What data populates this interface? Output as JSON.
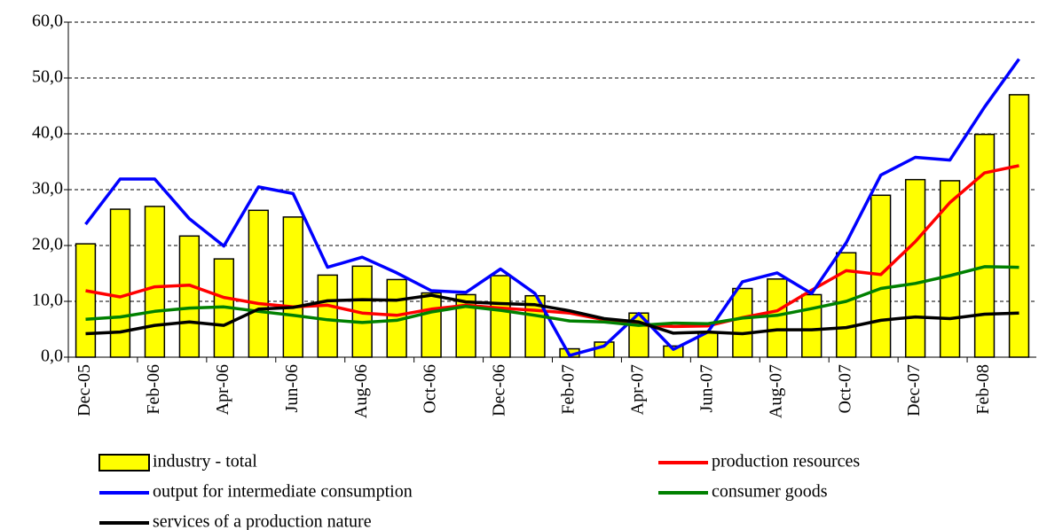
{
  "chart_data": {
    "type": "bar",
    "categories": [
      "Dec-05",
      null,
      "Feb-06",
      null,
      "Apr-06",
      null,
      "Jun-06",
      null,
      "Aug-06",
      null,
      "Oct-06",
      null,
      "Dec-06",
      null,
      "Feb-07",
      null,
      "Apr-07",
      null,
      "Jun-07",
      null,
      "Aug-07",
      null,
      "Oct-07",
      null,
      "Dec-07",
      null,
      "Feb-08",
      null
    ],
    "series": [
      {
        "name": "industry - total",
        "type": "bar",
        "color": "#ffff00",
        "values": [
          20.3,
          26.5,
          27.0,
          21.7,
          17.6,
          26.3,
          25.1,
          14.7,
          16.3,
          13.9,
          11.5,
          11.2,
          14.6,
          11.0,
          1.5,
          2.7,
          7.9,
          2.0,
          4.5,
          12.3,
          14.0,
          11.2,
          18.7,
          29.0,
          31.8,
          31.6,
          39.9,
          47.0
        ]
      },
      {
        "name": "production resources",
        "type": "line",
        "color": "#ff0000",
        "values": [
          11.9,
          10.8,
          12.6,
          12.9,
          10.7,
          9.6,
          9.0,
          9.3,
          7.9,
          7.5,
          8.6,
          9.3,
          8.8,
          8.4,
          7.9,
          6.7,
          5.8,
          5.5,
          5.6,
          7.1,
          8.3,
          12.0,
          15.5,
          14.8,
          20.7,
          27.7,
          33.0,
          34.3
        ]
      },
      {
        "name": "output for intermediate consumption",
        "type": "line",
        "color": "#0000ff",
        "values": [
          23.8,
          31.9,
          31.9,
          24.8,
          19.9,
          30.5,
          29.3,
          16.1,
          17.9,
          15.1,
          11.9,
          11.6,
          15.8,
          11.4,
          0.3,
          2.0,
          7.8,
          1.4,
          4.5,
          13.5,
          15.1,
          11.4,
          20.5,
          32.6,
          35.8,
          35.3,
          44.8,
          53.4
        ]
      },
      {
        "name": "consumer goods",
        "type": "line",
        "color": "#008000",
        "values": [
          6.8,
          7.2,
          8.2,
          8.8,
          9.0,
          8.2,
          7.5,
          6.7,
          6.2,
          6.6,
          8.1,
          9.1,
          8.4,
          7.5,
          6.5,
          6.3,
          5.7,
          6.1,
          6.0,
          7.0,
          7.5,
          8.7,
          10.0,
          12.3,
          13.2,
          14.6,
          16.2,
          16.1
        ]
      },
      {
        "name": "services of a production nature",
        "type": "line",
        "color": "#000000",
        "values": [
          4.2,
          4.5,
          5.7,
          6.3,
          5.7,
          8.6,
          8.9,
          10.1,
          10.3,
          10.2,
          11.1,
          9.9,
          9.6,
          9.4,
          8.3,
          6.9,
          6.3,
          4.3,
          4.5,
          4.2,
          4.9,
          4.9,
          5.3,
          6.6,
          7.2,
          6.9,
          7.7,
          7.9
        ]
      }
    ],
    "ylim": [
      0,
      60
    ],
    "yticks": [
      {
        "value": 0,
        "label": "0,0"
      },
      {
        "value": 10,
        "label": "10,0"
      },
      {
        "value": 20,
        "label": "20,0"
      },
      {
        "value": 30,
        "label": "30,0"
      },
      {
        "value": 40,
        "label": "40,0"
      },
      {
        "value": 50,
        "label": "50,0"
      },
      {
        "value": 60,
        "label": "60,0"
      }
    ],
    "grid": true,
    "legend": "bottom"
  }
}
